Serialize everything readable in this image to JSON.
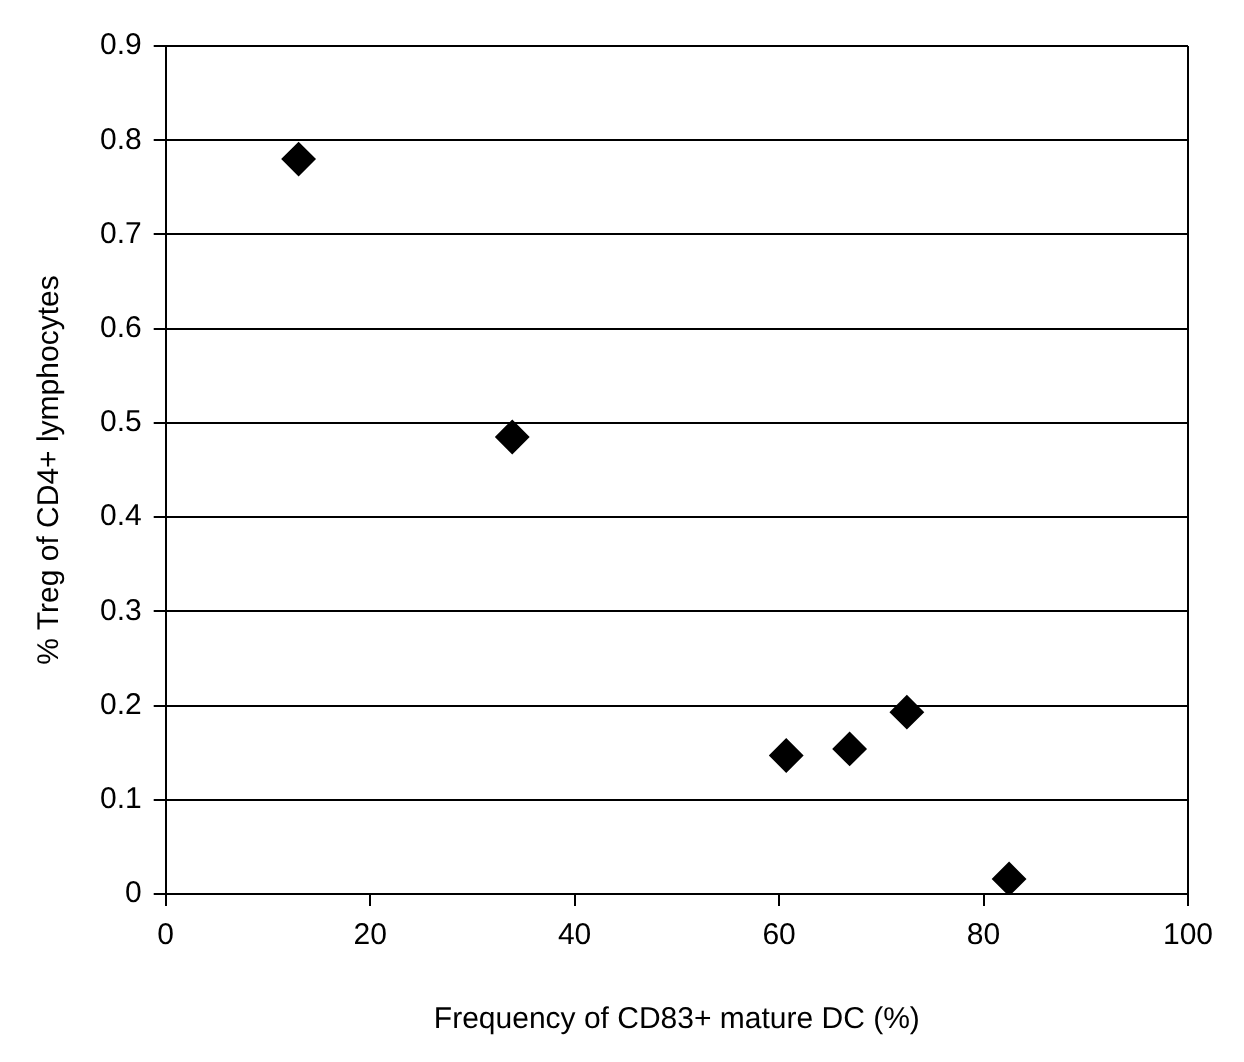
{
  "chart_data": {
    "type": "scatter",
    "xlabel": "Frequency of CD83+ mature DC (%)",
    "ylabel": "% Treg of CD4+ lymphocytes",
    "x": [
      13.0,
      33.9,
      60.7,
      66.9,
      72.5,
      82.5
    ],
    "series": [
      {
        "color": "#000000",
        "values": [
          0.78,
          0.485,
          0.147,
          0.154,
          0.193,
          0.016
        ]
      }
    ],
    "xlim": [
      0,
      100
    ],
    "xticks": [
      0,
      20,
      40,
      60,
      80,
      100
    ],
    "ylim": [
      0,
      0.9
    ],
    "yticks": [
      0,
      0.1,
      0.2,
      0.3,
      0.4,
      0.5,
      0.6,
      0.7,
      0.8,
      0.9
    ],
    "grid": "y",
    "marker": "diamond",
    "legend": false
  }
}
